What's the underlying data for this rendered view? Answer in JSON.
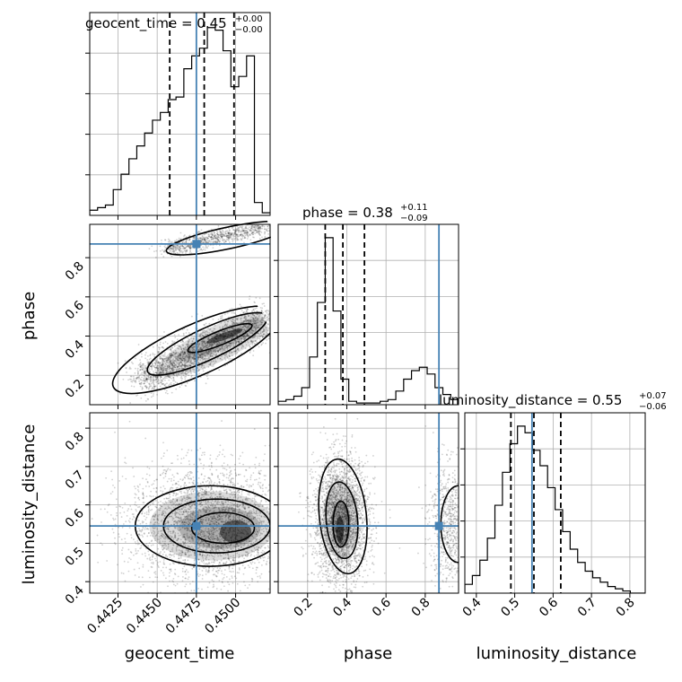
{
  "colors": {
    "truth": "#4682b4",
    "frame": "#000000",
    "grid": "#b0b0b0",
    "hist": "#000000"
  },
  "chart_data": {
    "type": "corner",
    "parameters": [
      "geocent_time",
      "phase",
      "luminosity_distance"
    ],
    "truth": {
      "geocent_time": 0.4475,
      "phase": 0.87,
      "luminosity_distance": 0.545
    },
    "titles": {
      "geocent_time": {
        "label": "geocent_time = 0.45",
        "plus": "+0.00",
        "minus": "−0.00"
      },
      "phase": {
        "label": "phase = 0.38",
        "plus": "+0.11",
        "minus": "−0.09"
      },
      "luminosity_distance": {
        "label": "luminosity_distance = 0.55",
        "plus": "+0.07",
        "minus": "−0.06"
      }
    },
    "ranges": {
      "geocent_time": [
        0.4407,
        0.4522
      ],
      "phase": [
        0.05,
        0.97
      ],
      "luminosity_distance": [
        0.37,
        0.84
      ]
    },
    "ticks": {
      "geocent_time": [
        "0.4425",
        "0.4450",
        "0.4475",
        "0.4500"
      ],
      "phase": [
        "0.2",
        "0.4",
        "0.6",
        "0.8"
      ],
      "luminosity_distance": [
        "0.4",
        "0.5",
        "0.6",
        "0.7",
        "0.8"
      ]
    },
    "quantiles": {
      "geocent_time": [
        0.4458,
        0.448,
        0.4499
      ],
      "phase": [
        0.29,
        0.38,
        0.49
      ],
      "luminosity_distance": [
        0.49,
        0.55,
        0.62
      ]
    },
    "histograms": {
      "geocent_time": {
        "edges_start": 0.4407,
        "bin_width": 0.0005,
        "counts": [
          2,
          3,
          4,
          10,
          16,
          22,
          27,
          32,
          37,
          40,
          45,
          46,
          57,
          62,
          65,
          73,
          72,
          64,
          50,
          54,
          62,
          5,
          1,
          1
        ]
      },
      "phase": {
        "edges_start": 0.05,
        "bin_width": 0.04,
        "counts": [
          2,
          3,
          5,
          10,
          28,
          60,
          98,
          55,
          15,
          2,
          1,
          1,
          1,
          2,
          3,
          8,
          15,
          20,
          22,
          18,
          10,
          6,
          3
        ]
      },
      "luminosity_distance": {
        "edges_start": 0.37,
        "bin_width": 0.0196,
        "counts": [
          4,
          8,
          15,
          25,
          40,
          55,
          68,
          76,
          73,
          65,
          58,
          48,
          38,
          28,
          20,
          14,
          10,
          7,
          5,
          3,
          2,
          1,
          0,
          0
        ]
      }
    },
    "panels_2d": [
      {
        "x": "geocent_time",
        "y": "phase"
      },
      {
        "x": "geocent_time",
        "y": "luminosity_distance"
      },
      {
        "x": "phase",
        "y": "luminosity_distance"
      }
    ],
    "axis_labels": {
      "x": [
        "geocent_time",
        "phase",
        "luminosity_distance"
      ],
      "y": [
        "phase",
        "luminosity_distance"
      ]
    },
    "grid": true
  }
}
